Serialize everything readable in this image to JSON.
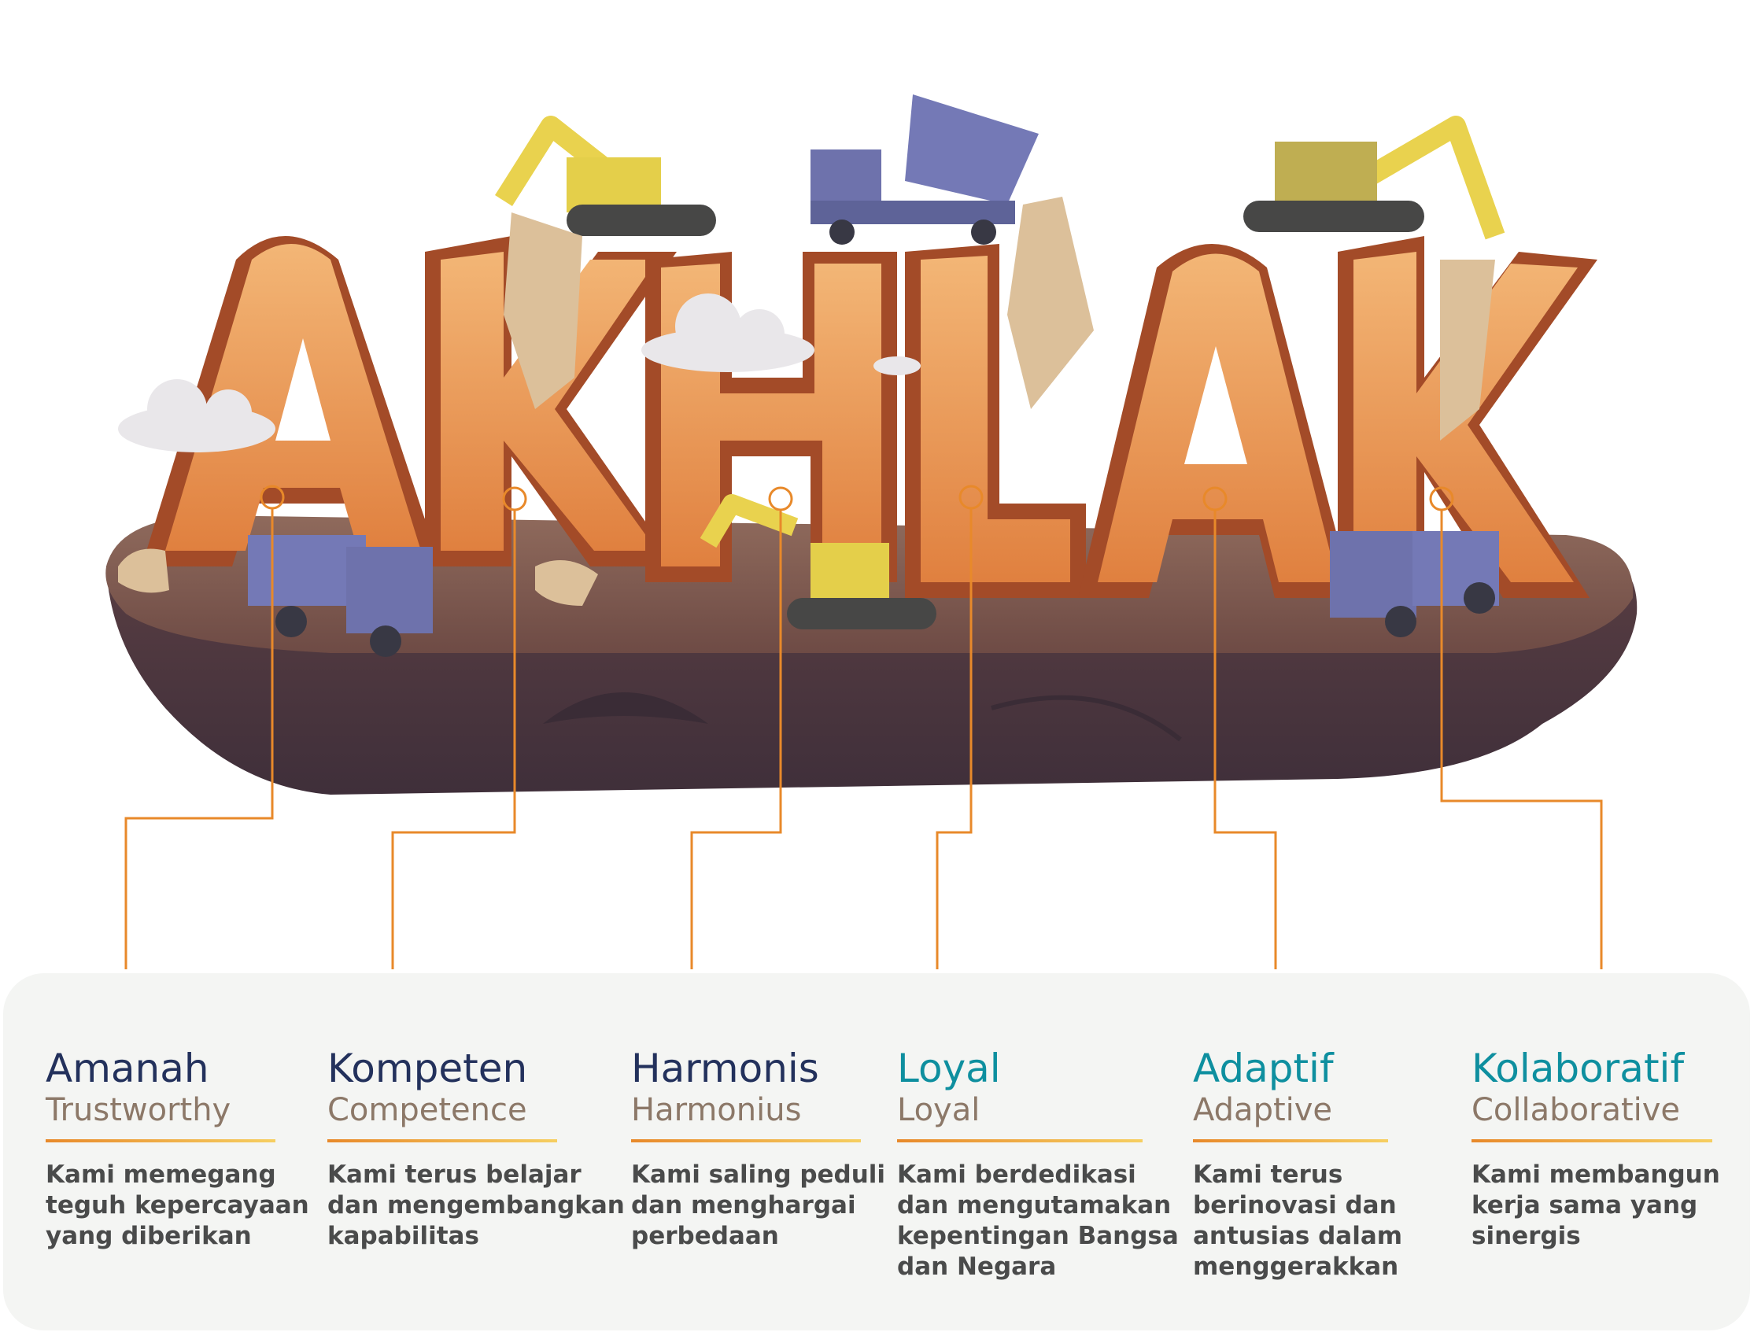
{
  "colors": {
    "dark_title": "#23315c",
    "teal_title": "#0e8f9f",
    "subtitle": "#8c7868",
    "description": "#4a4b4b",
    "connector": "#e8892a",
    "rule_start": "#e8892a",
    "rule_end": "#f6cf61",
    "panel_bg": "#f4f5f3"
  },
  "illustration": {
    "letters": [
      "A",
      "K",
      "H",
      "L",
      "A",
      "K"
    ]
  },
  "values": [
    {
      "title": "Amanah",
      "subtitle": "Trustworthy",
      "title_color": "#23315c",
      "description": [
        "Kami memegang",
        "teguh kepercayaan",
        "yang diberikan"
      ]
    },
    {
      "title": "Kompeten",
      "subtitle": "Competence",
      "title_color": "#23315c",
      "description": [
        "Kami terus belajar",
        "dan mengembangkan",
        "kapabilitas"
      ]
    },
    {
      "title": "Harmonis",
      "subtitle": "Harmonius",
      "title_color": "#23315c",
      "description": [
        "Kami saling peduli",
        "dan menghargai",
        "perbedaan"
      ]
    },
    {
      "title": "Loyal",
      "subtitle": "Loyal",
      "title_color": "#0e8f9f",
      "description": [
        "Kami berdedikasi",
        "dan mengutamakan",
        "kepentingan Bangsa",
        "dan Negara"
      ]
    },
    {
      "title": "Adaptif",
      "subtitle": "Adaptive",
      "title_color": "#0e8f9f",
      "description": [
        "Kami terus",
        "berinovasi dan",
        "antusias dalam",
        "menggerakkan"
      ]
    },
    {
      "title": "Kolaboratif",
      "subtitle": "Collaborative",
      "title_color": "#0e8f9f",
      "description": [
        "Kami membangun",
        "kerja sama yang",
        "sinergis"
      ]
    }
  ]
}
